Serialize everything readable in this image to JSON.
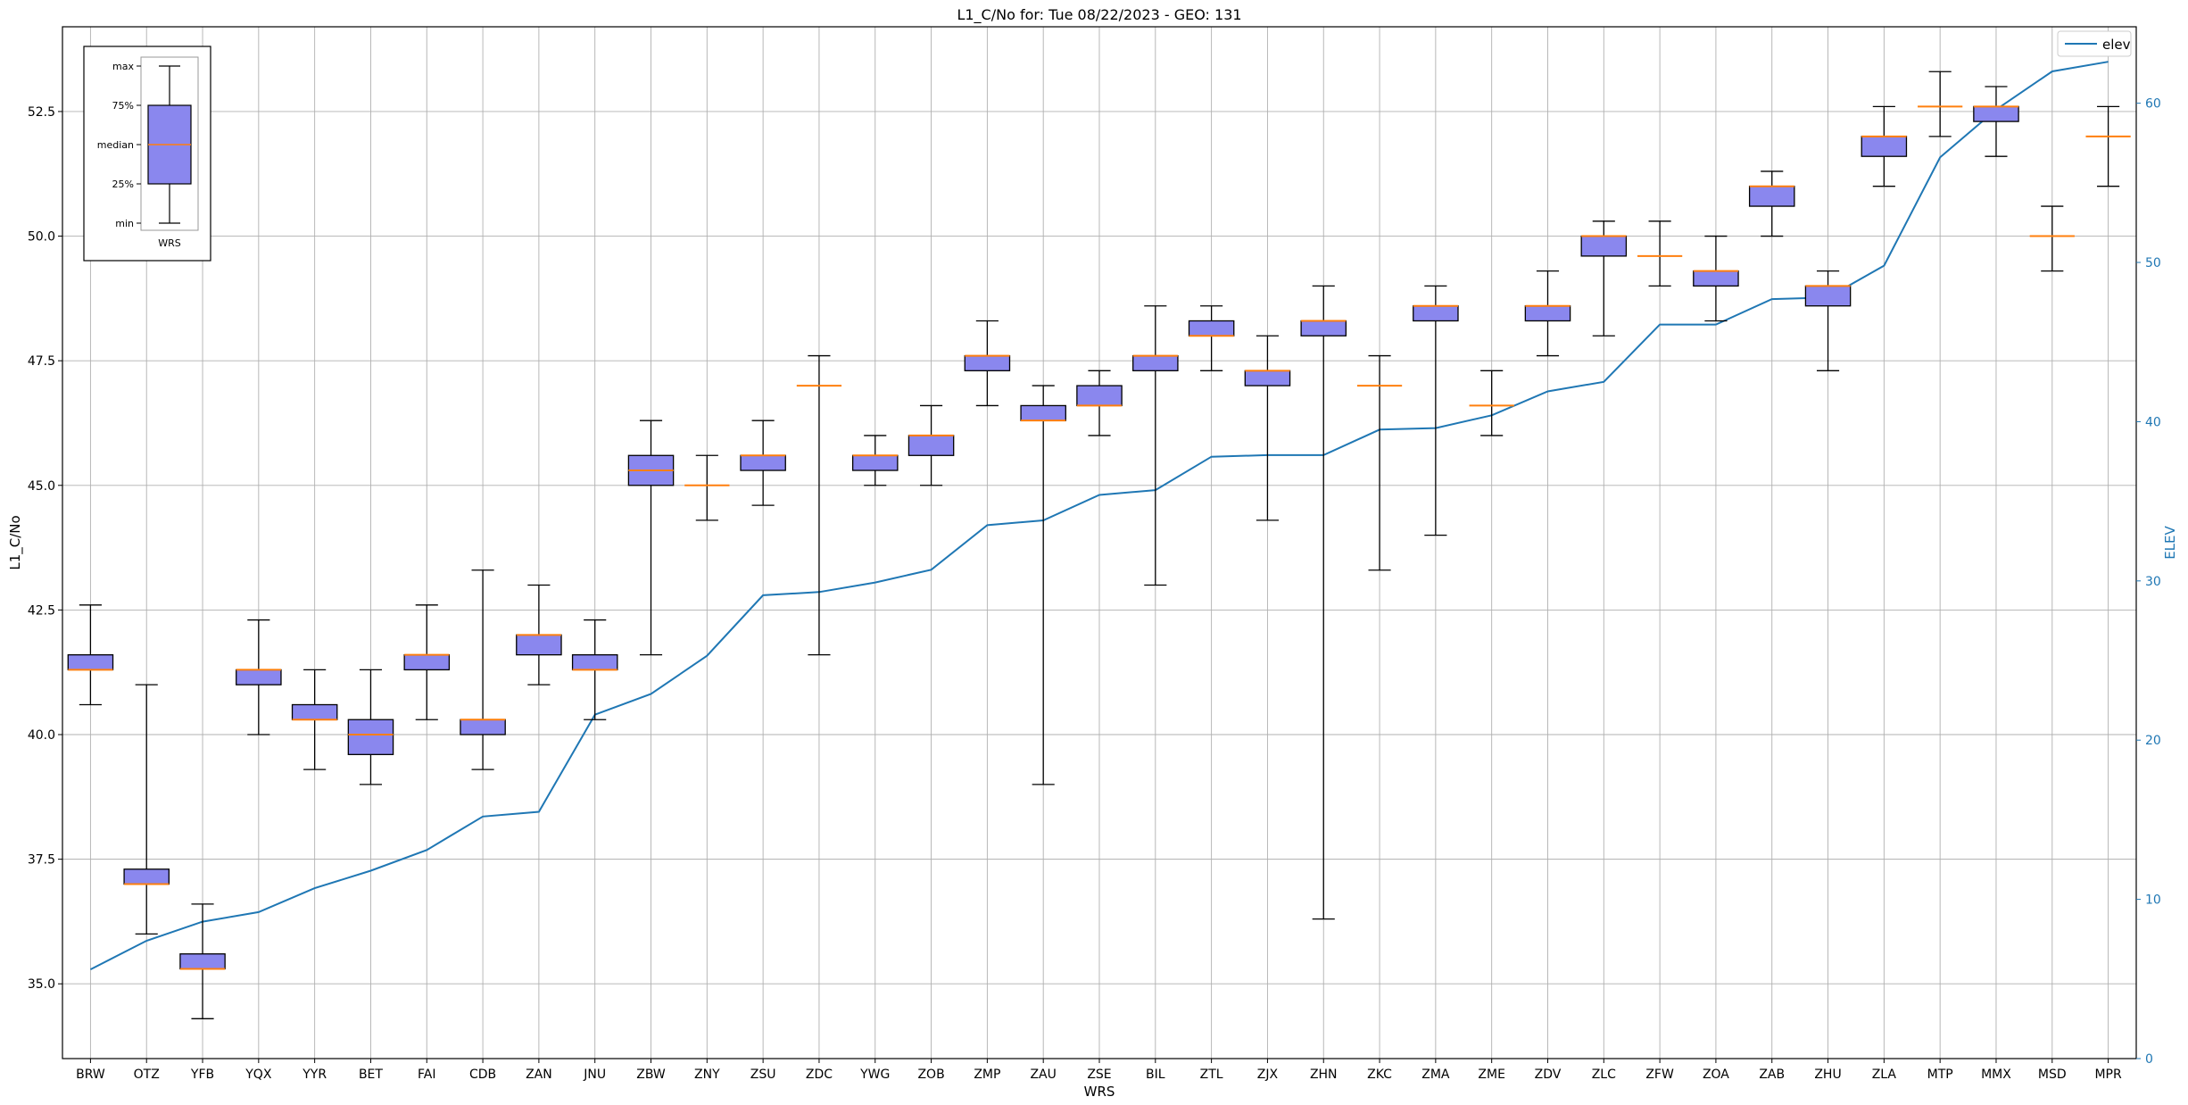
{
  "chart_data": {
    "type": "box",
    "title": "L1_C/No for: Tue 08/22/2023 - GEO: 131",
    "xlabel": "WRS",
    "ylabel": "L1_C/No",
    "ylabel_right": "ELEV",
    "ylim": [
      33.5,
      54.2
    ],
    "ylim_right": [
      0,
      64.8
    ],
    "yticks": [
      "35.0",
      "37.5",
      "40.0",
      "42.5",
      "45.0",
      "47.5",
      "50.0",
      "52.5"
    ],
    "yticks_right": [
      "0",
      "10",
      "20",
      "30",
      "40",
      "50",
      "60"
    ],
    "grid": true,
    "legend": {
      "position": "top-right",
      "entries": [
        "elev"
      ]
    },
    "colors": {
      "box": "#8a87ee",
      "median": "#ff7f0e",
      "elev": "#1f77b4",
      "axis_right": "#1f77b4"
    },
    "boxes": [
      {
        "wrs": "BRW",
        "min": 40.6,
        "q1": 41.3,
        "median": 41.3,
        "q3": 41.6,
        "max": 42.6
      },
      {
        "wrs": "OTZ",
        "min": 36.0,
        "q1": 37.0,
        "median": 37.0,
        "q3": 37.3,
        "max": 41.0
      },
      {
        "wrs": "YFB",
        "min": 34.3,
        "q1": 35.3,
        "median": 35.3,
        "q3": 35.6,
        "max": 36.6
      },
      {
        "wrs": "YQX",
        "min": 40.0,
        "q1": 41.0,
        "median": 41.3,
        "q3": 41.3,
        "max": 42.3
      },
      {
        "wrs": "YYR",
        "min": 39.3,
        "q1": 40.3,
        "median": 40.3,
        "q3": 40.6,
        "max": 41.3
      },
      {
        "wrs": "BET",
        "min": 39.0,
        "q1": 39.6,
        "median": 40.0,
        "q3": 40.3,
        "max": 41.3
      },
      {
        "wrs": "FAI",
        "min": 40.3,
        "q1": 41.3,
        "median": 41.6,
        "q3": 41.6,
        "max": 42.6
      },
      {
        "wrs": "CDB",
        "min": 39.3,
        "q1": 40.0,
        "median": 40.3,
        "q3": 40.3,
        "max": 43.3
      },
      {
        "wrs": "ZAN",
        "min": 41.0,
        "q1": 41.6,
        "median": 42.0,
        "q3": 42.0,
        "max": 43.0
      },
      {
        "wrs": "JNU",
        "min": 40.3,
        "q1": 41.3,
        "median": 41.3,
        "q3": 41.6,
        "max": 42.3
      },
      {
        "wrs": "ZBW",
        "min": 41.6,
        "q1": 45.0,
        "median": 45.3,
        "q3": 45.6,
        "max": 46.3
      },
      {
        "wrs": "ZNY",
        "min": 44.3,
        "q1": 45.0,
        "median": 45.0,
        "q3": 45.0,
        "max": 45.6
      },
      {
        "wrs": "ZSU",
        "min": 44.6,
        "q1": 45.3,
        "median": 45.6,
        "q3": 45.6,
        "max": 46.3
      },
      {
        "wrs": "ZDC",
        "min": 41.6,
        "q1": 47.0,
        "median": 47.0,
        "q3": 47.0,
        "max": 47.6
      },
      {
        "wrs": "YWG",
        "min": 45.0,
        "q1": 45.3,
        "median": 45.6,
        "q3": 45.6,
        "max": 46.0
      },
      {
        "wrs": "ZOB",
        "min": 45.0,
        "q1": 45.6,
        "median": 46.0,
        "q3": 46.0,
        "max": 46.6
      },
      {
        "wrs": "ZMP",
        "min": 46.6,
        "q1": 47.3,
        "median": 47.6,
        "q3": 47.6,
        "max": 48.3
      },
      {
        "wrs": "ZAU",
        "min": 39.0,
        "q1": 46.3,
        "median": 46.3,
        "q3": 46.6,
        "max": 47.0
      },
      {
        "wrs": "ZSE",
        "min": 46.0,
        "q1": 46.6,
        "median": 46.6,
        "q3": 47.0,
        "max": 47.3
      },
      {
        "wrs": "BIL",
        "min": 43.0,
        "q1": 47.3,
        "median": 47.6,
        "q3": 47.6,
        "max": 48.6
      },
      {
        "wrs": "ZTL",
        "min": 47.3,
        "q1": 48.0,
        "median": 48.0,
        "q3": 48.3,
        "max": 48.6
      },
      {
        "wrs": "ZJX",
        "min": 44.3,
        "q1": 47.0,
        "median": 47.3,
        "q3": 47.3,
        "max": 48.0
      },
      {
        "wrs": "ZHN",
        "min": 36.3,
        "q1": 48.0,
        "median": 48.3,
        "q3": 48.3,
        "max": 49.0
      },
      {
        "wrs": "ZKC",
        "min": 43.3,
        "q1": 47.0,
        "median": 47.0,
        "q3": 47.0,
        "max": 47.6
      },
      {
        "wrs": "ZMA",
        "min": 44.0,
        "q1": 48.3,
        "median": 48.6,
        "q3": 48.6,
        "max": 49.0
      },
      {
        "wrs": "ZME",
        "min": 46.0,
        "q1": 46.6,
        "median": 46.6,
        "q3": 46.6,
        "max": 47.3
      },
      {
        "wrs": "ZDV",
        "min": 47.6,
        "q1": 48.3,
        "median": 48.6,
        "q3": 48.6,
        "max": 49.3
      },
      {
        "wrs": "ZLC",
        "min": 48.0,
        "q1": 49.6,
        "median": 50.0,
        "q3": 50.0,
        "max": 50.3
      },
      {
        "wrs": "ZFW",
        "min": 49.0,
        "q1": 49.6,
        "median": 49.6,
        "q3": 49.6,
        "max": 50.3
      },
      {
        "wrs": "ZOA",
        "min": 48.3,
        "q1": 49.0,
        "median": 49.3,
        "q3": 49.3,
        "max": 50.0
      },
      {
        "wrs": "ZAB",
        "min": 50.0,
        "q1": 50.6,
        "median": 51.0,
        "q3": 51.0,
        "max": 51.3
      },
      {
        "wrs": "ZHU",
        "min": 47.3,
        "q1": 48.6,
        "median": 49.0,
        "q3": 49.0,
        "max": 49.3
      },
      {
        "wrs": "ZLA",
        "min": 51.0,
        "q1": 51.6,
        "median": 52.0,
        "q3": 52.0,
        "max": 52.6
      },
      {
        "wrs": "MTP",
        "min": 52.0,
        "q1": 52.6,
        "median": 52.6,
        "q3": 52.6,
        "max": 53.3
      },
      {
        "wrs": "MMX",
        "min": 51.6,
        "q1": 52.3,
        "median": 52.6,
        "q3": 52.6,
        "max": 53.0
      },
      {
        "wrs": "MSD",
        "min": 49.3,
        "q1": 50.0,
        "median": 50.0,
        "q3": 50.0,
        "max": 50.6
      },
      {
        "wrs": "MPR",
        "min": 51.0,
        "q1": 52.0,
        "median": 52.0,
        "q3": 52.0,
        "max": 52.6
      }
    ],
    "series": [
      {
        "name": "elev",
        "axis": "right",
        "values": [
          5.6,
          7.4,
          8.6,
          9.2,
          10.7,
          11.8,
          13.1,
          15.2,
          15.5,
          21.6,
          22.9,
          25.3,
          29.1,
          29.3,
          29.9,
          30.7,
          33.5,
          33.8,
          35.4,
          35.7,
          37.8,
          37.9,
          37.9,
          39.5,
          39.6,
          40.4,
          41.9,
          42.5,
          46.1,
          46.1,
          47.7,
          47.8,
          49.8,
          56.6,
          59.6,
          62.0,
          62.6
        ]
      }
    ],
    "legend_inset": {
      "labels": [
        "max",
        "75%",
        "median",
        "25%",
        "min"
      ],
      "xlabel": "WRS"
    }
  }
}
